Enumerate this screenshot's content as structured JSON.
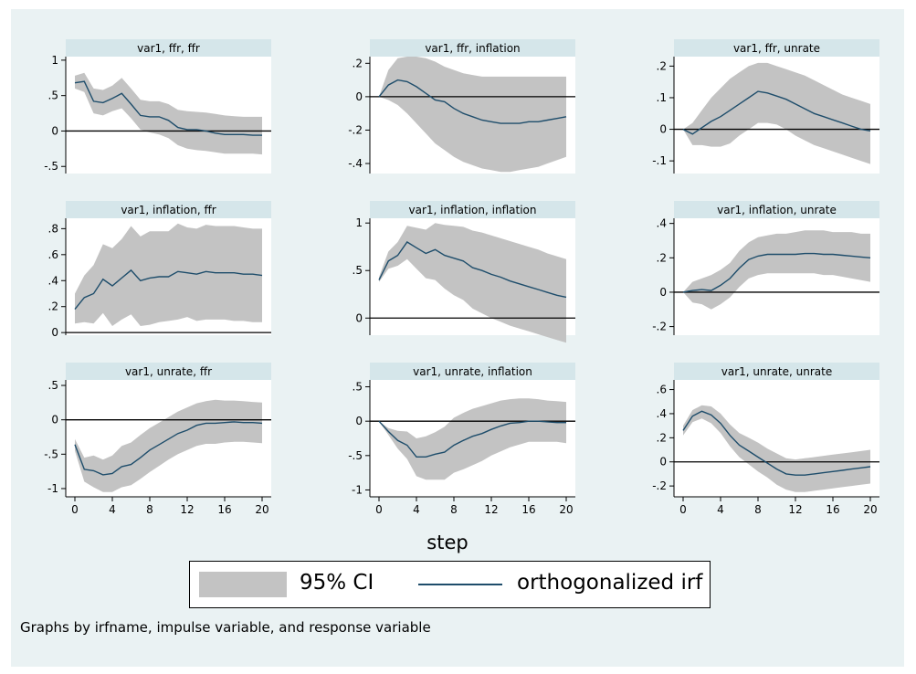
{
  "figure": {
    "xlabel": "step",
    "note": "Graphs by irfname, impulse variable, and response variable",
    "colors": {
      "background": "#eaf2f3",
      "title_bar": "#d5e6ea",
      "ci_band": "#c3c3c3",
      "irf_line": "#1e4d6b",
      "zero_line": "#000000"
    },
    "legend": [
      {
        "label": "95% CI",
        "kind": "band"
      },
      {
        "label": "orthogonalized irf",
        "kind": "line"
      }
    ]
  },
  "chart_data": [
    {
      "type": "area",
      "title": "var1, ffr, ffr",
      "ylim": [
        -0.6,
        1.05
      ],
      "yticks": [
        -0.5,
        0,
        0.5,
        1
      ],
      "yticklabels": [
        "-.5",
        "0",
        ".5",
        "1"
      ],
      "x": [
        0,
        1,
        2,
        3,
        4,
        5,
        6,
        7,
        8,
        9,
        10,
        11,
        12,
        13,
        14,
        15,
        16,
        17,
        18,
        19,
        20
      ],
      "irf": [
        0.68,
        0.7,
        0.42,
        0.4,
        0.46,
        0.53,
        0.38,
        0.22,
        0.2,
        0.2,
        0.15,
        0.05,
        0.02,
        0.02,
        0.0,
        -0.03,
        -0.05,
        -0.05,
        -0.05,
        -0.06,
        -0.06
      ],
      "lower": [
        0.6,
        0.55,
        0.25,
        0.22,
        0.28,
        0.32,
        0.18,
        0.02,
        -0.02,
        -0.05,
        -0.1,
        -0.2,
        -0.25,
        -0.27,
        -0.28,
        -0.3,
        -0.32,
        -0.32,
        -0.32,
        -0.32,
        -0.33
      ],
      "upper": [
        0.78,
        0.82,
        0.6,
        0.58,
        0.64,
        0.75,
        0.6,
        0.44,
        0.42,
        0.42,
        0.38,
        0.3,
        0.28,
        0.27,
        0.26,
        0.24,
        0.22,
        0.21,
        0.2,
        0.2,
        0.2
      ]
    },
    {
      "type": "area",
      "title": "var1, ffr, inflation",
      "ylim": [
        -0.46,
        0.24
      ],
      "yticks": [
        -0.4,
        -0.2,
        0,
        0.2
      ],
      "yticklabels": [
        "-.4",
        "-.2",
        "0",
        ".2"
      ],
      "x": [
        0,
        1,
        2,
        3,
        4,
        5,
        6,
        7,
        8,
        9,
        10,
        11,
        12,
        13,
        14,
        15,
        16,
        17,
        18,
        19,
        20
      ],
      "irf": [
        0.0,
        0.07,
        0.1,
        0.09,
        0.06,
        0.02,
        -0.02,
        -0.03,
        -0.07,
        -0.1,
        -0.12,
        -0.14,
        -0.15,
        -0.16,
        -0.16,
        -0.16,
        -0.15,
        -0.15,
        -0.14,
        -0.13,
        -0.12
      ],
      "lower": [
        0.0,
        -0.02,
        -0.05,
        -0.1,
        -0.16,
        -0.22,
        -0.28,
        -0.32,
        -0.36,
        -0.39,
        -0.41,
        -0.43,
        -0.44,
        -0.45,
        -0.45,
        -0.44,
        -0.43,
        -0.42,
        -0.4,
        -0.38,
        -0.36
      ],
      "upper": [
        0.0,
        0.16,
        0.23,
        0.24,
        0.24,
        0.23,
        0.21,
        0.18,
        0.16,
        0.14,
        0.13,
        0.12,
        0.12,
        0.12,
        0.12,
        0.12,
        0.12,
        0.12,
        0.12,
        0.12,
        0.12
      ]
    },
    {
      "type": "area",
      "title": "var1, ffr, unrate",
      "ylim": [
        -0.14,
        0.23
      ],
      "yticks": [
        -0.1,
        0,
        0.1,
        0.2
      ],
      "yticklabels": [
        "-.1",
        "0",
        ".1",
        ".2"
      ],
      "x": [
        0,
        1,
        2,
        3,
        4,
        5,
        6,
        7,
        8,
        9,
        10,
        11,
        12,
        13,
        14,
        15,
        16,
        17,
        18,
        19,
        20
      ],
      "irf": [
        0.0,
        -0.015,
        0.005,
        0.025,
        0.04,
        0.06,
        0.08,
        0.1,
        0.12,
        0.115,
        0.105,
        0.095,
        0.08,
        0.065,
        0.05,
        0.04,
        0.03,
        0.02,
        0.01,
        0.0,
        -0.005
      ],
      "lower": [
        0.0,
        -0.05,
        -0.05,
        -0.055,
        -0.055,
        -0.045,
        -0.02,
        0.0,
        0.02,
        0.02,
        0.015,
        0.0,
        -0.02,
        -0.035,
        -0.05,
        -0.06,
        -0.07,
        -0.08,
        -0.09,
        -0.1,
        -0.11
      ],
      "upper": [
        0.0,
        0.02,
        0.06,
        0.1,
        0.13,
        0.16,
        0.18,
        0.2,
        0.21,
        0.21,
        0.2,
        0.19,
        0.18,
        0.17,
        0.155,
        0.14,
        0.125,
        0.11,
        0.1,
        0.09,
        0.08
      ]
    },
    {
      "type": "area",
      "title": "var1, inflation, ffr",
      "ylim": [
        -0.02,
        0.88
      ],
      "yticks": [
        0,
        0.2,
        0.4,
        0.6,
        0.8
      ],
      "yticklabels": [
        "0",
        ".2",
        ".4",
        ".6",
        ".8"
      ],
      "x": [
        0,
        1,
        2,
        3,
        4,
        5,
        6,
        7,
        8,
        9,
        10,
        11,
        12,
        13,
        14,
        15,
        16,
        17,
        18,
        19,
        20
      ],
      "irf": [
        0.18,
        0.27,
        0.3,
        0.41,
        0.36,
        0.42,
        0.48,
        0.4,
        0.42,
        0.43,
        0.43,
        0.47,
        0.46,
        0.45,
        0.47,
        0.46,
        0.46,
        0.46,
        0.45,
        0.45,
        0.44
      ],
      "lower": [
        0.07,
        0.08,
        0.07,
        0.15,
        0.05,
        0.1,
        0.14,
        0.05,
        0.06,
        0.08,
        0.09,
        0.1,
        0.12,
        0.09,
        0.1,
        0.1,
        0.1,
        0.09,
        0.09,
        0.08,
        0.08
      ],
      "upper": [
        0.3,
        0.44,
        0.52,
        0.68,
        0.65,
        0.72,
        0.82,
        0.74,
        0.78,
        0.78,
        0.78,
        0.84,
        0.81,
        0.8,
        0.83,
        0.82,
        0.82,
        0.82,
        0.81,
        0.8,
        0.8
      ]
    },
    {
      "type": "area",
      "title": "var1, inflation, inflation",
      "ylim": [
        -0.18,
        1.05
      ],
      "yticks": [
        0,
        0.5,
        1
      ],
      "yticklabels": [
        "0",
        ".5",
        "1"
      ],
      "x": [
        0,
        1,
        2,
        3,
        4,
        5,
        6,
        7,
        8,
        9,
        10,
        11,
        12,
        13,
        14,
        15,
        16,
        17,
        18,
        19,
        20
      ],
      "irf": [
        0.4,
        0.6,
        0.66,
        0.8,
        0.74,
        0.68,
        0.72,
        0.66,
        0.63,
        0.6,
        0.53,
        0.5,
        0.46,
        0.43,
        0.39,
        0.36,
        0.33,
        0.3,
        0.27,
        0.24,
        0.22
      ],
      "lower": [
        0.38,
        0.52,
        0.55,
        0.62,
        0.52,
        0.42,
        0.4,
        0.31,
        0.24,
        0.19,
        0.1,
        0.05,
        0.0,
        -0.04,
        -0.08,
        -0.11,
        -0.14,
        -0.17,
        -0.2,
        -0.23,
        -0.26
      ],
      "upper": [
        0.43,
        0.7,
        0.8,
        0.97,
        0.95,
        0.93,
        1.0,
        0.98,
        0.97,
        0.96,
        0.92,
        0.9,
        0.87,
        0.84,
        0.81,
        0.78,
        0.75,
        0.72,
        0.68,
        0.65,
        0.62
      ]
    },
    {
      "type": "area",
      "title": "var1, inflation, unrate",
      "ylim": [
        -0.25,
        0.43
      ],
      "yticks": [
        -0.2,
        0,
        0.2,
        0.4
      ],
      "yticklabels": [
        "-.2",
        "0",
        ".2",
        ".4"
      ],
      "x": [
        0,
        1,
        2,
        3,
        4,
        5,
        6,
        7,
        8,
        9,
        10,
        11,
        12,
        13,
        14,
        15,
        16,
        17,
        18,
        19,
        20
      ],
      "irf": [
        0.0,
        0.01,
        0.015,
        0.01,
        0.04,
        0.08,
        0.14,
        0.19,
        0.21,
        0.22,
        0.22,
        0.22,
        0.22,
        0.225,
        0.225,
        0.22,
        0.22,
        0.215,
        0.21,
        0.205,
        0.2
      ],
      "lower": [
        0.0,
        -0.06,
        -0.07,
        -0.1,
        -0.07,
        -0.03,
        0.03,
        0.08,
        0.1,
        0.11,
        0.11,
        0.11,
        0.11,
        0.11,
        0.11,
        0.1,
        0.1,
        0.09,
        0.08,
        0.07,
        0.06
      ],
      "upper": [
        0.0,
        0.06,
        0.08,
        0.1,
        0.13,
        0.17,
        0.24,
        0.29,
        0.32,
        0.33,
        0.34,
        0.34,
        0.35,
        0.36,
        0.36,
        0.36,
        0.35,
        0.35,
        0.35,
        0.34,
        0.34
      ]
    },
    {
      "type": "area",
      "title": "var1, unrate, ffr",
      "ylim": [
        -1.12,
        0.58
      ],
      "yticks": [
        -1,
        -0.5,
        0,
        0.5
      ],
      "yticklabels": [
        "-1",
        "-.5",
        "0",
        ".5"
      ],
      "x": [
        0,
        1,
        2,
        3,
        4,
        5,
        6,
        7,
        8,
        9,
        10,
        11,
        12,
        13,
        14,
        15,
        16,
        17,
        18,
        19,
        20
      ],
      "irf": [
        -0.36,
        -0.72,
        -0.74,
        -0.8,
        -0.78,
        -0.68,
        -0.65,
        -0.55,
        -0.44,
        -0.36,
        -0.28,
        -0.2,
        -0.15,
        -0.08,
        -0.05,
        -0.05,
        -0.04,
        -0.03,
        -0.04,
        -0.04,
        -0.05
      ],
      "lower": [
        -0.45,
        -0.9,
        -0.98,
        -1.05,
        -1.05,
        -0.98,
        -0.95,
        -0.86,
        -0.76,
        -0.67,
        -0.58,
        -0.5,
        -0.44,
        -0.38,
        -0.35,
        -0.35,
        -0.33,
        -0.32,
        -0.32,
        -0.33,
        -0.34
      ],
      "upper": [
        -0.28,
        -0.55,
        -0.52,
        -0.58,
        -0.52,
        -0.38,
        -0.33,
        -0.22,
        -0.12,
        -0.04,
        0.04,
        0.12,
        0.18,
        0.24,
        0.27,
        0.29,
        0.28,
        0.28,
        0.27,
        0.26,
        0.25
      ]
    },
    {
      "type": "area",
      "title": "var1, unrate, inflation",
      "ylim": [
        -1.1,
        0.6
      ],
      "yticks": [
        -1,
        -0.5,
        0,
        0.5
      ],
      "yticklabels": [
        "-1",
        "-.5",
        "0",
        ".5"
      ],
      "x": [
        0,
        1,
        2,
        3,
        4,
        5,
        6,
        7,
        8,
        9,
        10,
        11,
        12,
        13,
        14,
        15,
        16,
        17,
        18,
        19,
        20
      ],
      "irf": [
        0.0,
        -0.15,
        -0.28,
        -0.35,
        -0.52,
        -0.52,
        -0.48,
        -0.45,
        -0.35,
        -0.28,
        -0.22,
        -0.18,
        -0.12,
        -0.07,
        -0.03,
        -0.02,
        0.0,
        0.0,
        -0.01,
        -0.02,
        -0.02
      ],
      "lower": [
        0.0,
        -0.2,
        -0.4,
        -0.55,
        -0.8,
        -0.85,
        -0.85,
        -0.85,
        -0.75,
        -0.7,
        -0.64,
        -0.58,
        -0.5,
        -0.44,
        -0.38,
        -0.34,
        -0.3,
        -0.3,
        -0.3,
        -0.3,
        -0.32
      ],
      "upper": [
        0.0,
        -0.1,
        -0.14,
        -0.15,
        -0.25,
        -0.22,
        -0.16,
        -0.08,
        0.05,
        0.12,
        0.18,
        0.22,
        0.26,
        0.3,
        0.32,
        0.33,
        0.33,
        0.32,
        0.3,
        0.29,
        0.28
      ]
    },
    {
      "type": "area",
      "title": "var1, unrate, unrate",
      "ylim": [
        -0.29,
        0.68
      ],
      "yticks": [
        -0.2,
        0,
        0.2,
        0.4,
        0.6
      ],
      "yticklabels": [
        "-.2",
        "0",
        ".2",
        ".4",
        ".6"
      ],
      "x": [
        0,
        1,
        2,
        3,
        4,
        5,
        6,
        7,
        8,
        9,
        10,
        11,
        12,
        13,
        14,
        15,
        16,
        17,
        18,
        19,
        20
      ],
      "irf": [
        0.26,
        0.38,
        0.42,
        0.39,
        0.32,
        0.22,
        0.14,
        0.09,
        0.04,
        -0.01,
        -0.06,
        -0.1,
        -0.11,
        -0.11,
        -0.1,
        -0.09,
        -0.08,
        -0.07,
        -0.06,
        -0.05,
        -0.04
      ],
      "lower": [
        0.22,
        0.33,
        0.36,
        0.32,
        0.24,
        0.13,
        0.04,
        -0.02,
        -0.08,
        -0.13,
        -0.19,
        -0.23,
        -0.25,
        -0.25,
        -0.24,
        -0.23,
        -0.22,
        -0.21,
        -0.2,
        -0.19,
        -0.18
      ],
      "upper": [
        0.3,
        0.43,
        0.47,
        0.46,
        0.4,
        0.31,
        0.24,
        0.2,
        0.16,
        0.11,
        0.07,
        0.03,
        0.02,
        0.03,
        0.04,
        0.05,
        0.06,
        0.07,
        0.08,
        0.09,
        0.1
      ]
    }
  ]
}
